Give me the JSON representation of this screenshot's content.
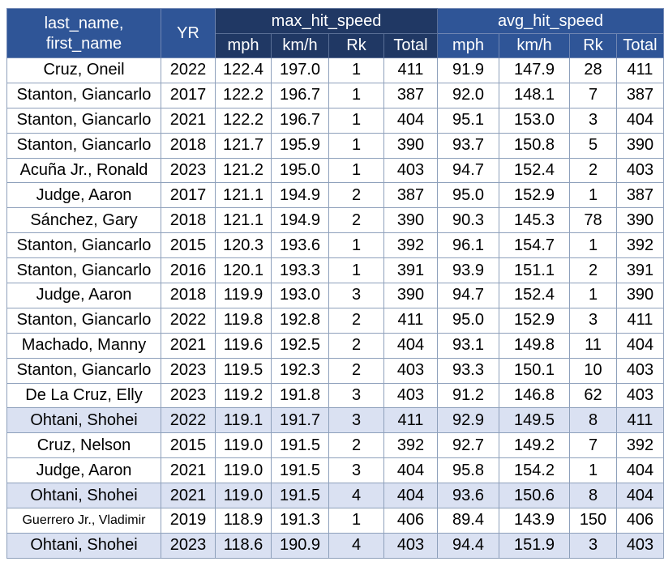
{
  "table": {
    "headers": {
      "name_line1": "last_name,",
      "name_line2": "first_name",
      "year": "YR",
      "max_group": "max_hit_speed",
      "avg_group": "avg_hit_speed",
      "sub": [
        "mph",
        "km/h",
        "Rk",
        "Total",
        "mph",
        "km/h",
        "Rk",
        "Total"
      ]
    },
    "highlight_color": "#dae1f2",
    "header_colors": {
      "blue": "#2f5597",
      "navy": "#203864"
    },
    "rows": [
      {
        "name": "Cruz, Oneil",
        "yr": "2022",
        "max_mph": "122.4",
        "max_kmh": "197.0",
        "max_rk": "1",
        "max_total": "411",
        "avg_mph": "91.9",
        "avg_kmh": "147.9",
        "avg_rk": "28",
        "avg_total": "411",
        "highlight": false
      },
      {
        "name": "Stanton, Giancarlo",
        "yr": "2017",
        "max_mph": "122.2",
        "max_kmh": "196.7",
        "max_rk": "1",
        "max_total": "387",
        "avg_mph": "92.0",
        "avg_kmh": "148.1",
        "avg_rk": "7",
        "avg_total": "387",
        "highlight": false
      },
      {
        "name": "Stanton, Giancarlo",
        "yr": "2021",
        "max_mph": "122.2",
        "max_kmh": "196.7",
        "max_rk": "1",
        "max_total": "404",
        "avg_mph": "95.1",
        "avg_kmh": "153.0",
        "avg_rk": "3",
        "avg_total": "404",
        "highlight": false
      },
      {
        "name": "Stanton, Giancarlo",
        "yr": "2018",
        "max_mph": "121.7",
        "max_kmh": "195.9",
        "max_rk": "1",
        "max_total": "390",
        "avg_mph": "93.7",
        "avg_kmh": "150.8",
        "avg_rk": "5",
        "avg_total": "390",
        "highlight": false
      },
      {
        "name": "Acuña Jr., Ronald",
        "yr": "2023",
        "max_mph": "121.2",
        "max_kmh": "195.0",
        "max_rk": "1",
        "max_total": "403",
        "avg_mph": "94.7",
        "avg_kmh": "152.4",
        "avg_rk": "2",
        "avg_total": "403",
        "highlight": false
      },
      {
        "name": "Judge, Aaron",
        "yr": "2017",
        "max_mph": "121.1",
        "max_kmh": "194.9",
        "max_rk": "2",
        "max_total": "387",
        "avg_mph": "95.0",
        "avg_kmh": "152.9",
        "avg_rk": "1",
        "avg_total": "387",
        "highlight": false
      },
      {
        "name": "Sánchez, Gary",
        "yr": "2018",
        "max_mph": "121.1",
        "max_kmh": "194.9",
        "max_rk": "2",
        "max_total": "390",
        "avg_mph": "90.3",
        "avg_kmh": "145.3",
        "avg_rk": "78",
        "avg_total": "390",
        "highlight": false
      },
      {
        "name": "Stanton, Giancarlo",
        "yr": "2015",
        "max_mph": "120.3",
        "max_kmh": "193.6",
        "max_rk": "1",
        "max_total": "392",
        "avg_mph": "96.1",
        "avg_kmh": "154.7",
        "avg_rk": "1",
        "avg_total": "392",
        "highlight": false
      },
      {
        "name": "Stanton, Giancarlo",
        "yr": "2016",
        "max_mph": "120.1",
        "max_kmh": "193.3",
        "max_rk": "1",
        "max_total": "391",
        "avg_mph": "93.9",
        "avg_kmh": "151.1",
        "avg_rk": "2",
        "avg_total": "391",
        "highlight": false
      },
      {
        "name": "Judge, Aaron",
        "yr": "2018",
        "max_mph": "119.9",
        "max_kmh": "193.0",
        "max_rk": "3",
        "max_total": "390",
        "avg_mph": "94.7",
        "avg_kmh": "152.4",
        "avg_rk": "1",
        "avg_total": "390",
        "highlight": false
      },
      {
        "name": "Stanton, Giancarlo",
        "yr": "2022",
        "max_mph": "119.8",
        "max_kmh": "192.8",
        "max_rk": "2",
        "max_total": "411",
        "avg_mph": "95.0",
        "avg_kmh": "152.9",
        "avg_rk": "3",
        "avg_total": "411",
        "highlight": false
      },
      {
        "name": "Machado, Manny",
        "yr": "2021",
        "max_mph": "119.6",
        "max_kmh": "192.5",
        "max_rk": "2",
        "max_total": "404",
        "avg_mph": "93.1",
        "avg_kmh": "149.8",
        "avg_rk": "11",
        "avg_total": "404",
        "highlight": false
      },
      {
        "name": "Stanton, Giancarlo",
        "yr": "2023",
        "max_mph": "119.5",
        "max_kmh": "192.3",
        "max_rk": "2",
        "max_total": "403",
        "avg_mph": "93.3",
        "avg_kmh": "150.1",
        "avg_rk": "10",
        "avg_total": "403",
        "highlight": false
      },
      {
        "name": "De La Cruz, Elly",
        "yr": "2023",
        "max_mph": "119.2",
        "max_kmh": "191.8",
        "max_rk": "3",
        "max_total": "403",
        "avg_mph": "91.2",
        "avg_kmh": "146.8",
        "avg_rk": "62",
        "avg_total": "403",
        "highlight": false
      },
      {
        "name": "Ohtani, Shohei",
        "yr": "2022",
        "max_mph": "119.1",
        "max_kmh": "191.7",
        "max_rk": "3",
        "max_total": "411",
        "avg_mph": "92.9",
        "avg_kmh": "149.5",
        "avg_rk": "8",
        "avg_total": "411",
        "highlight": true
      },
      {
        "name": "Cruz, Nelson",
        "yr": "2015",
        "max_mph": "119.0",
        "max_kmh": "191.5",
        "max_rk": "2",
        "max_total": "392",
        "avg_mph": "92.7",
        "avg_kmh": "149.2",
        "avg_rk": "7",
        "avg_total": "392",
        "highlight": false
      },
      {
        "name": "Judge, Aaron",
        "yr": "2021",
        "max_mph": "119.0",
        "max_kmh": "191.5",
        "max_rk": "3",
        "max_total": "404",
        "avg_mph": "95.8",
        "avg_kmh": "154.2",
        "avg_rk": "1",
        "avg_total": "404",
        "highlight": false
      },
      {
        "name": "Ohtani, Shohei",
        "yr": "2021",
        "max_mph": "119.0",
        "max_kmh": "191.5",
        "max_rk": "4",
        "max_total": "404",
        "avg_mph": "93.6",
        "avg_kmh": "150.6",
        "avg_rk": "8",
        "avg_total": "404",
        "highlight": true
      },
      {
        "name": "Guerrero Jr., Vladimir",
        "yr": "2019",
        "max_mph": "118.9",
        "max_kmh": "191.3",
        "max_rk": "1",
        "max_total": "406",
        "avg_mph": "89.4",
        "avg_kmh": "143.9",
        "avg_rk": "150",
        "avg_total": "406",
        "highlight": false,
        "small": true
      },
      {
        "name": "Ohtani, Shohei",
        "yr": "2023",
        "max_mph": "118.6",
        "max_kmh": "190.9",
        "max_rk": "4",
        "max_total": "403",
        "avg_mph": "94.4",
        "avg_kmh": "151.9",
        "avg_rk": "3",
        "avg_total": "403",
        "highlight": true
      }
    ]
  }
}
